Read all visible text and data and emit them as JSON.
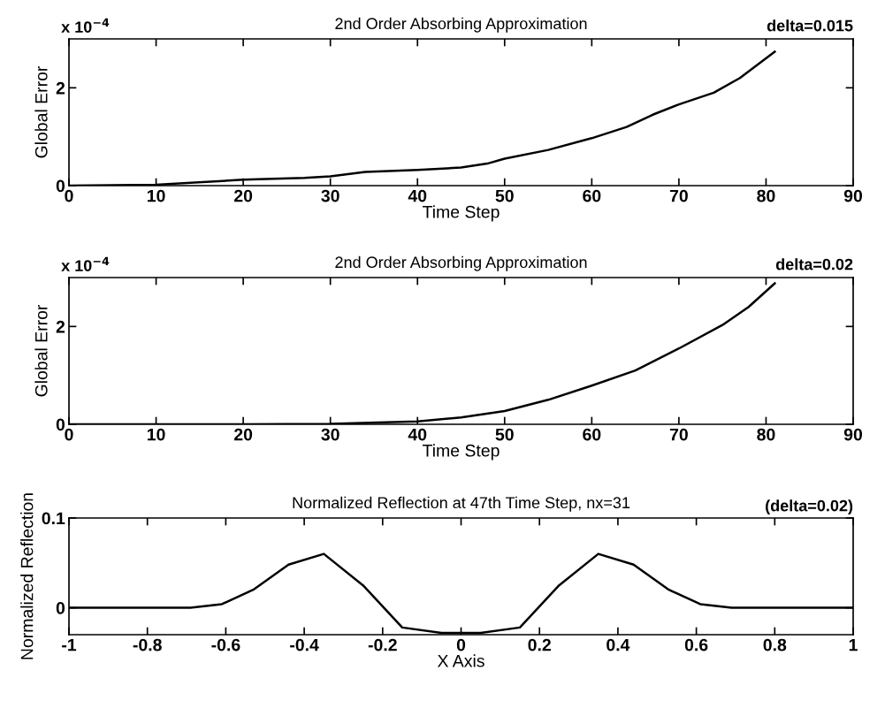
{
  "chart_data": [
    {
      "type": "line",
      "title": "2nd Order Absorbing Approximation",
      "xlabel": "Time Step",
      "ylabel": "Global Error",
      "annotations": [
        "delta=0.015",
        "x 10$^{−4}$"
      ],
      "x": [
        0,
        10,
        20,
        27,
        30,
        34,
        40,
        45,
        48,
        50,
        55,
        60,
        64,
        67,
        70,
        74,
        77,
        81
      ],
      "series": [
        {
          "color": "#000000",
          "values": [
            0,
            0.02,
            0.12,
            0.16,
            0.19,
            0.28,
            0.32,
            0.37,
            0.45,
            0.55,
            0.73,
            0.97,
            1.2,
            1.45,
            1.66,
            1.9,
            2.2,
            2.74
          ]
        }
      ],
      "xlim": [
        0,
        90
      ],
      "xticks": [
        0,
        10,
        20,
        30,
        40,
        50,
        60,
        70,
        80,
        90
      ],
      "ylim": [
        0,
        3
      ],
      "yticks": [
        0,
        2
      ],
      "grid": false,
      "legend": false
    },
    {
      "type": "line",
      "title": "2nd Order Absorbing Approximation",
      "xlabel": "Time Step",
      "ylabel": "Global Error",
      "annotations": [
        "delta=0.02",
        "x 10$^{−4}$"
      ],
      "x": [
        0,
        20,
        30,
        40,
        45,
        50,
        55,
        60,
        65,
        70,
        75,
        78,
        81
      ],
      "series": [
        {
          "color": "#000000",
          "values": [
            0,
            0,
            0.01,
            0.06,
            0.14,
            0.27,
            0.5,
            0.79,
            1.1,
            1.55,
            2.03,
            2.4,
            2.88
          ]
        }
      ],
      "xlim": [
        0,
        90
      ],
      "xticks": [
        0,
        10,
        20,
        30,
        40,
        50,
        60,
        70,
        80,
        90
      ],
      "ylim": [
        0,
        3
      ],
      "yticks": [
        0,
        2
      ],
      "grid": false,
      "legend": false
    },
    {
      "type": "line",
      "title": "Normalized Reflection at 47th Time Step, nx=31",
      "xlabel": "X Axis",
      "ylabel": "Normalized Reflection",
      "annotations": [
        "(delta=0.02)"
      ],
      "x": [
        -1,
        -0.69,
        -0.61,
        -0.53,
        -0.44,
        -0.35,
        -0.25,
        -0.15,
        -0.05,
        0.05,
        0.15,
        0.25,
        0.35,
        0.44,
        0.53,
        0.61,
        0.69,
        1
      ],
      "series": [
        {
          "color": "#000000",
          "values": [
            0,
            0,
            0.004,
            0.02,
            0.048,
            0.06,
            0.025,
            -0.022,
            -0.028,
            -0.028,
            -0.022,
            0.025,
            0.06,
            0.048,
            0.02,
            0.004,
            0,
            0
          ]
        }
      ],
      "xlim": [
        -1,
        1
      ],
      "xticks": [
        -1,
        -0.8,
        -0.6,
        -0.4,
        -0.2,
        0,
        0.2,
        0.4,
        0.6,
        0.8,
        1
      ],
      "ylim": [
        -0.03,
        0.1
      ],
      "yticks": [
        0,
        0.1
      ],
      "grid": false,
      "legend": false
    }
  ]
}
